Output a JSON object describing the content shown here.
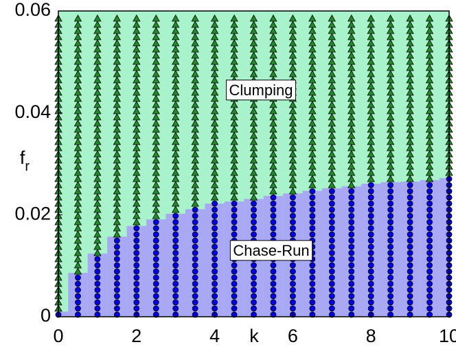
{
  "chart_data": {
    "type": "phase",
    "x_label": "k",
    "y_label": "f",
    "y_label_subscript": "r",
    "annotations": [
      "Clumping",
      "Chase-Run"
    ],
    "x": [
      0,
      0.5,
      1,
      1.5,
      2,
      2.5,
      3,
      3.5,
      4,
      4.5,
      5,
      5.5,
      6,
      6.5,
      7,
      7.5,
      8,
      8.5,
      9,
      9.5,
      10
    ],
    "series": [
      {
        "name": "Chase-Run",
        "color": "#a8a8f5",
        "marker_color": "#0000e0",
        "values": [
          0.001,
          0.0086,
          0.0124,
          0.0157,
          0.0178,
          0.0191,
          0.0202,
          0.0211,
          0.0222,
          0.0226,
          0.0231,
          0.0237,
          0.0242,
          0.0247,
          0.0252,
          0.0256,
          0.0261,
          0.0264,
          0.0265,
          0.0268,
          0.0272
        ]
      }
    ],
    "region_color": "#a8f2cc",
    "region_marker_color": "#1e8c2a",
    "xlim": [
      0,
      10
    ],
    "xticks": [
      0,
      2,
      4,
      6,
      8,
      10
    ],
    "ylim": [
      0,
      0.06
    ],
    "yticks": [
      0,
      0.02,
      0.04,
      0.06
    ]
  }
}
